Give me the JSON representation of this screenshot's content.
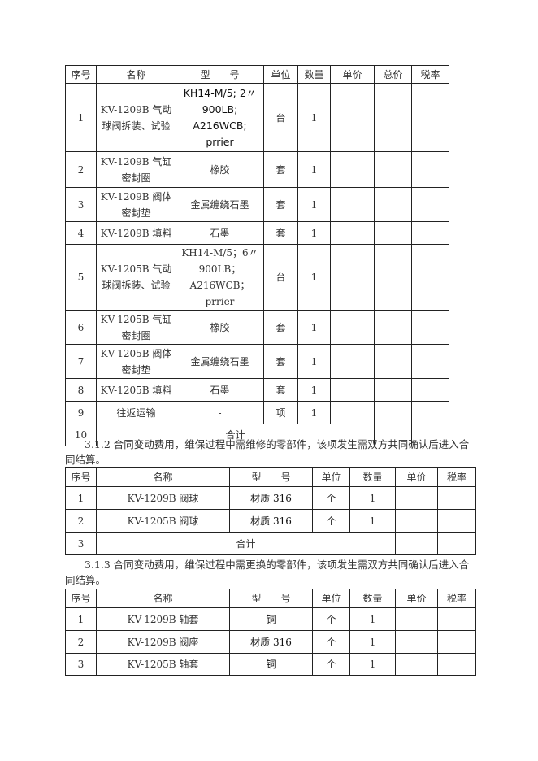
{
  "table1": {
    "headers": [
      "序号",
      "名称",
      "型　　号",
      "单位",
      "数量",
      "单价",
      "总价",
      "税率"
    ],
    "rows": [
      {
        "no": "1",
        "name": "KV-1209B 气动球阀拆装、试验",
        "model": "KH14-M/5; 2〃 900LB; A216WCB; prrier",
        "unit": "台",
        "qty": "1"
      },
      {
        "no": "2",
        "name": "KV-1209B 气缸密封圈",
        "model": "橡胶",
        "unit": "套",
        "qty": "1"
      },
      {
        "no": "3",
        "name": "KV-1209B 阀体密封垫",
        "model": "金属缠绕石墨",
        "unit": "套",
        "qty": "1"
      },
      {
        "no": "4",
        "name": "KV-1209B 填料",
        "model": "石墨",
        "unit": "套",
        "qty": "1"
      },
      {
        "no": "5",
        "name": "KV-1205B 气动球阀拆装、试验",
        "model": "KH14-M/5；6〃 900LB；A216WCB；prrier",
        "unit": "台",
        "qty": "1"
      },
      {
        "no": "6",
        "name": "KV-1205B 气缸密封圈",
        "model": "橡胶",
        "unit": "套",
        "qty": "1"
      },
      {
        "no": "7",
        "name": "KV-1205B 阀体密封垫",
        "model": "金属缠绕石墨",
        "unit": "套",
        "qty": "1"
      },
      {
        "no": "8",
        "name": "KV-1205B 填料",
        "model": "石墨",
        "unit": "套",
        "qty": "1"
      },
      {
        "no": "9",
        "name": "往返运输",
        "model": "-",
        "unit": "项",
        "qty": "1"
      }
    ],
    "total": {
      "no": "10",
      "label": "合计"
    }
  },
  "para1": "3.1.2 合同变动费用，维保过程中需维修的零部件，该项发生需双方共同确认后进入合同结算。",
  "table2": {
    "headers": [
      "序号",
      "名称",
      "型　　号",
      "单位",
      "数量",
      "单价",
      "税率"
    ],
    "rows": [
      {
        "no": "1",
        "name": "KV-1209B 阀球",
        "model": "材质 316",
        "unit": "个",
        "qty": "1"
      },
      {
        "no": "2",
        "name": "KV-1205B 阀球",
        "model": "材质 316",
        "unit": "个",
        "qty": "1"
      }
    ],
    "total": {
      "no": "3",
      "label": "合计"
    }
  },
  "para2": "3.1.3 合同变动费用，维保过程中需更换的零部件，该项发生需双方共同确认后进入合同结算。",
  "table3": {
    "headers": [
      "序号",
      "名称",
      "型　　号",
      "单位",
      "数量",
      "单价",
      "税率"
    ],
    "rows": [
      {
        "no": "1",
        "name": "KV-1209B 轴套",
        "model": "铜",
        "unit": "个",
        "qty": "1"
      },
      {
        "no": "2",
        "name": "KV-1209B 阀座",
        "model": "材质 316",
        "unit": "个",
        "qty": "1"
      },
      {
        "no": "3",
        "name": "KV-1205B 轴套",
        "model": "铜",
        "unit": "个",
        "qty": "1"
      }
    ]
  }
}
